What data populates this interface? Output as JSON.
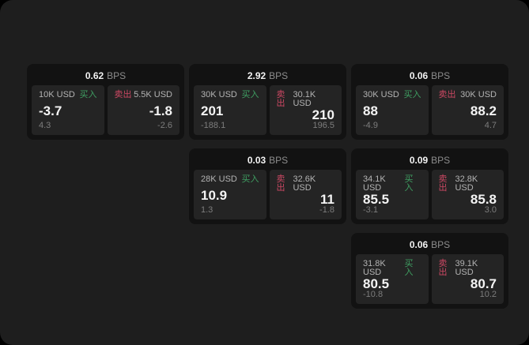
{
  "labels": {
    "buy": "买入",
    "sell": "卖出",
    "bps": "BPS"
  },
  "colors": {
    "buy": "#3f9f62",
    "sell": "#cc4863",
    "surface": "#1e1e1e",
    "card": "#121212",
    "panel": "#242424"
  },
  "cards": [
    {
      "bps": "0.62",
      "grid": {
        "row": 1,
        "col": 1
      },
      "buy": {
        "amount": "10K USD",
        "price": "-3.7",
        "delta": "4.3"
      },
      "sell": {
        "amount": "5.5K USD",
        "price": "-1.8",
        "delta": "-2.6"
      }
    },
    {
      "bps": "2.92",
      "grid": {
        "row": 1,
        "col": 2
      },
      "buy": {
        "amount": "30K USD",
        "price": "201",
        "delta": "-188.1"
      },
      "sell": {
        "amount": "30.1K USD",
        "price": "210",
        "delta": "196.5"
      }
    },
    {
      "bps": "0.06",
      "grid": {
        "row": 1,
        "col": 3
      },
      "buy": {
        "amount": "30K USD",
        "price": "88",
        "delta": "-4.9"
      },
      "sell": {
        "amount": "30K USD",
        "price": "88.2",
        "delta": "4.7"
      }
    },
    {
      "bps": "0.03",
      "grid": {
        "row": 2,
        "col": 2
      },
      "buy": {
        "amount": "28K USD",
        "price": "10.9",
        "delta": "1.3"
      },
      "sell": {
        "amount": "32.6K USD",
        "price": "11",
        "delta": "-1.8"
      }
    },
    {
      "bps": "0.09",
      "grid": {
        "row": 2,
        "col": 3
      },
      "buy": {
        "amount": "34.1K USD",
        "price": "85.5",
        "delta": "-3.1"
      },
      "sell": {
        "amount": "32.8K USD",
        "price": "85.8",
        "delta": "3.0"
      }
    },
    {
      "bps": "0.06",
      "grid": {
        "row": 3,
        "col": 3
      },
      "buy": {
        "amount": "31.8K USD",
        "price": "80.5",
        "delta": "-10.8"
      },
      "sell": {
        "amount": "39.1K USD",
        "price": "80.7",
        "delta": "10.2"
      }
    }
  ]
}
